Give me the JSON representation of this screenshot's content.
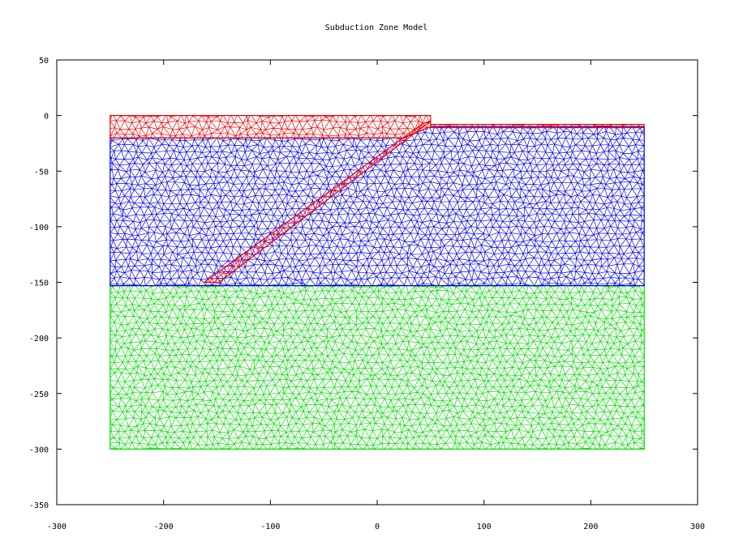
{
  "chart_data": {
    "type": "mesh",
    "title": "Subduction Zone Model",
    "xlabel": "",
    "ylabel": "",
    "xlim": [
      -300,
      300
    ],
    "ylim": [
      -350,
      50
    ],
    "xticks": [
      "-300",
      "-200",
      "-100",
      "0",
      "100",
      "200",
      "300"
    ],
    "yticks": [
      "50",
      "0",
      "-50",
      "-100",
      "-150",
      "-200",
      "-250",
      "-300",
      "-350"
    ],
    "grid": false,
    "legend": "none",
    "regions": [
      {
        "color": "#00dd00",
        "polygon": [
          [
            -250,
            -153
          ],
          [
            250,
            -153
          ],
          [
            250,
            -300
          ],
          [
            -250,
            -300
          ]
        ]
      },
      {
        "color": "#0000ee",
        "polygon": [
          [
            -250,
            -20
          ],
          [
            -150,
            -20
          ],
          [
            25,
            -20
          ],
          [
            50,
            -10
          ],
          [
            250,
            -10
          ],
          [
            250,
            -153
          ],
          [
            -165,
            -153
          ],
          [
            -250,
            -153
          ]
        ]
      },
      {
        "color": "#ee0000",
        "polygon": [
          [
            -250,
            0
          ],
          [
            50,
            0
          ],
          [
            50,
            -10
          ],
          [
            25,
            -20
          ],
          [
            -250,
            -20
          ]
        ]
      },
      {
        "color": "#ee0000",
        "polygon": [
          [
            43,
            -7
          ],
          [
            50,
            -5
          ],
          [
            -148,
            -150
          ],
          [
            -162,
            -150
          ]
        ]
      },
      {
        "color": "#ee0000",
        "polygon": [
          [
            50,
            -8
          ],
          [
            250,
            -8
          ],
          [
            250,
            -11
          ],
          [
            50,
            -11
          ]
        ]
      }
    ]
  }
}
